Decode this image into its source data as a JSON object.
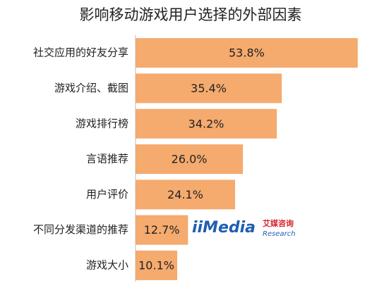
{
  "chart_data": {
    "type": "bar",
    "orientation": "horizontal",
    "title": "影响移动游戏用户选择的外部因素",
    "categories": [
      "社交应用的好友分享",
      "游戏介绍、截图",
      "游戏排行榜",
      "言语推荐",
      "用户评价",
      "不同分发渠道的推荐",
      "游戏大小"
    ],
    "values": [
      53.8,
      35.4,
      34.2,
      26.0,
      24.1,
      12.7,
      10.1
    ],
    "value_labels": [
      "53.8%",
      "35.4%",
      "34.2%",
      "26.0%",
      "24.1%",
      "12.7%",
      "10.1%"
    ],
    "color": "#f5aa6e",
    "xlim": [
      0,
      54
    ]
  },
  "watermark": {
    "brand": "iiMedia",
    "cn": "艾媒咨询",
    "en": "Research"
  }
}
